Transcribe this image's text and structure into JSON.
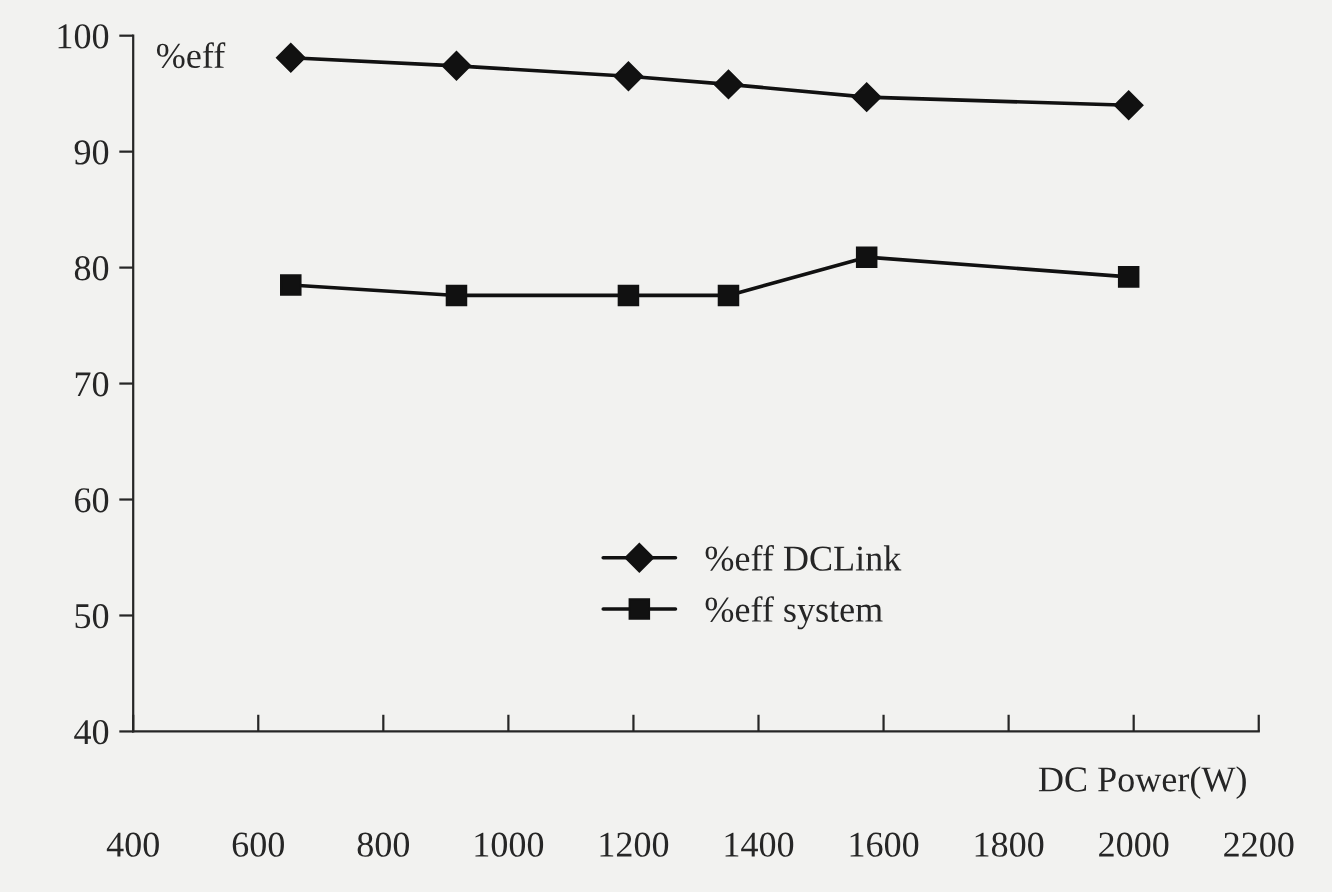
{
  "chart_data": {
    "type": "line",
    "xlabel": "DC Power(W)",
    "ylabel": "%eff",
    "x": [
      652,
      917,
      1192,
      1352,
      1573,
      1992
    ],
    "series": [
      {
        "name": "%eff DCLink",
        "color": "#111111",
        "marker": "diamond",
        "values": [
          98.1,
          97.4,
          96.5,
          95.8,
          94.7,
          94.0
        ]
      },
      {
        "name": "%eff system",
        "color": "#111111",
        "marker": "square",
        "values": [
          78.5,
          77.6,
          77.6,
          77.6,
          80.9,
          79.2
        ]
      }
    ],
    "xlim": [
      400,
      2200
    ],
    "xticks": [
      400,
      600,
      800,
      1000,
      1200,
      1400,
      1600,
      1800,
      2000,
      2200
    ],
    "ylim": [
      40,
      100
    ],
    "yticks": [
      40,
      50,
      60,
      70,
      80,
      90,
      100
    ],
    "grid": false,
    "legend": "bottom",
    "line_style": "solid"
  }
}
